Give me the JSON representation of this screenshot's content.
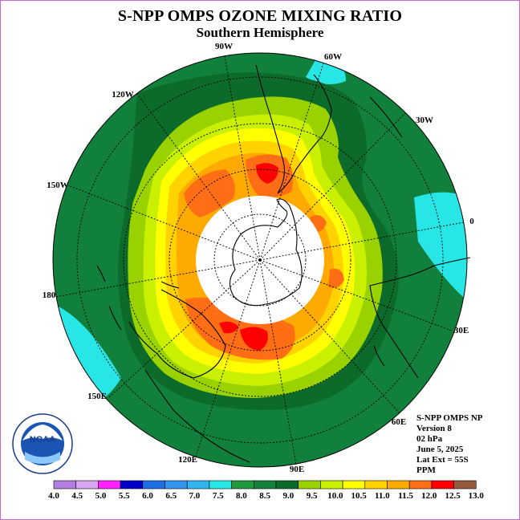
{
  "title": "S-NPP OMPS OZONE MIXING RATIO",
  "subtitle": "Southern Hemisphere",
  "info_lines": [
    "S-NPP OMPS NP",
    "Version 8",
    "02 hPa",
    "June 5, 2025",
    "Lat Ext = 55S",
    "PPM"
  ],
  "longitude_labels": [
    "90W",
    "60W",
    "120W",
    "30W",
    "150W",
    "0",
    "180",
    "30E",
    "150E",
    "60E",
    "120E",
    "90E"
  ],
  "logo_text": "NOAA",
  "colorbar": {
    "ticks": [
      "4.0",
      "4.5",
      "5.0",
      "5.5",
      "6.0",
      "6.5",
      "7.0",
      "7.5",
      "8.0",
      "8.5",
      "9.0",
      "9.5",
      "10.0",
      "10.5",
      "11.0",
      "11.5",
      "12.0",
      "12.5",
      "13.0"
    ],
    "colors": [
      "#b27fe0",
      "#d9a6f2",
      "#ff22ff",
      "#0000c8",
      "#1e6ee6",
      "#3296f0",
      "#32b4f0",
      "#28e6e6",
      "#1e9b3c",
      "#14823c",
      "#0c6a2a",
      "#9ad200",
      "#c8f000",
      "#ffff00",
      "#ffd200",
      "#ffaa00",
      "#ff6e14",
      "#ff0000",
      "#965a3c"
    ]
  },
  "map": {
    "pole": "South Pole",
    "latitude_extent": "55S",
    "ring_levels_ppm": [
      8.0,
      8.5,
      9.0,
      9.5,
      10.0,
      10.5,
      11.0,
      11.5
    ],
    "max_region_ppm": 12.0,
    "polar_night_no_data": true
  }
}
